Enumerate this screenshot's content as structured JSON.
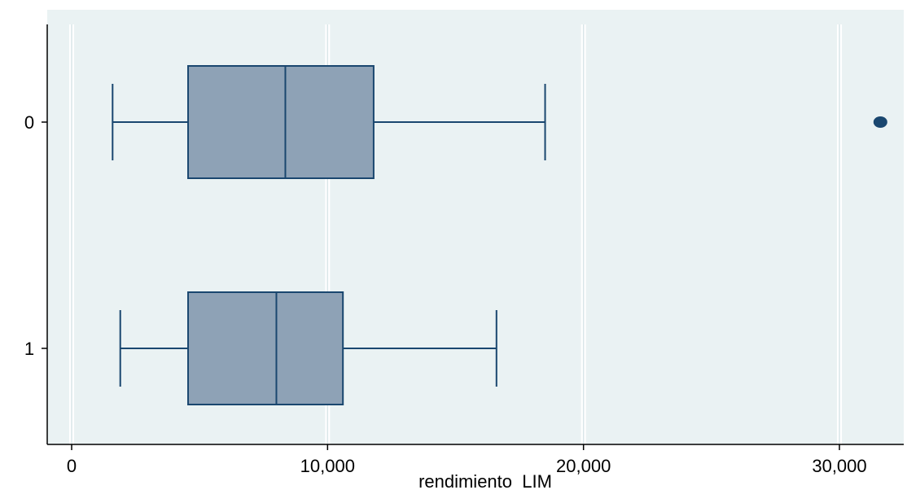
{
  "chart_data": {
    "type": "boxplot",
    "orientation": "horizontal",
    "xlabel": "rendimiento_LIM",
    "ylabel": "",
    "xlim": [
      -1000,
      32500
    ],
    "xticks": [
      0,
      10000,
      20000,
      30000
    ],
    "xtick_labels": [
      "0",
      "10,000",
      "20,000",
      "30,000"
    ],
    "grid": true,
    "categories": [
      "0",
      "1"
    ],
    "boxes": [
      {
        "group": "0",
        "whisker_low": 1600,
        "q1": 4550,
        "median": 8350,
        "q3": 11800,
        "whisker_high": 18500,
        "outliers": [
          31600
        ]
      },
      {
        "group": "1",
        "whisker_low": 1900,
        "q1": 4550,
        "median": 8000,
        "q3": 10600,
        "whisker_high": 16600,
        "outliers": []
      }
    ],
    "colors": {
      "plot_background": "#eaf2f3",
      "box_fill": "#8ea2b6",
      "box_stroke": "#1a476f",
      "outlier": "#1a476f",
      "grid": "#d9e6e8"
    }
  }
}
